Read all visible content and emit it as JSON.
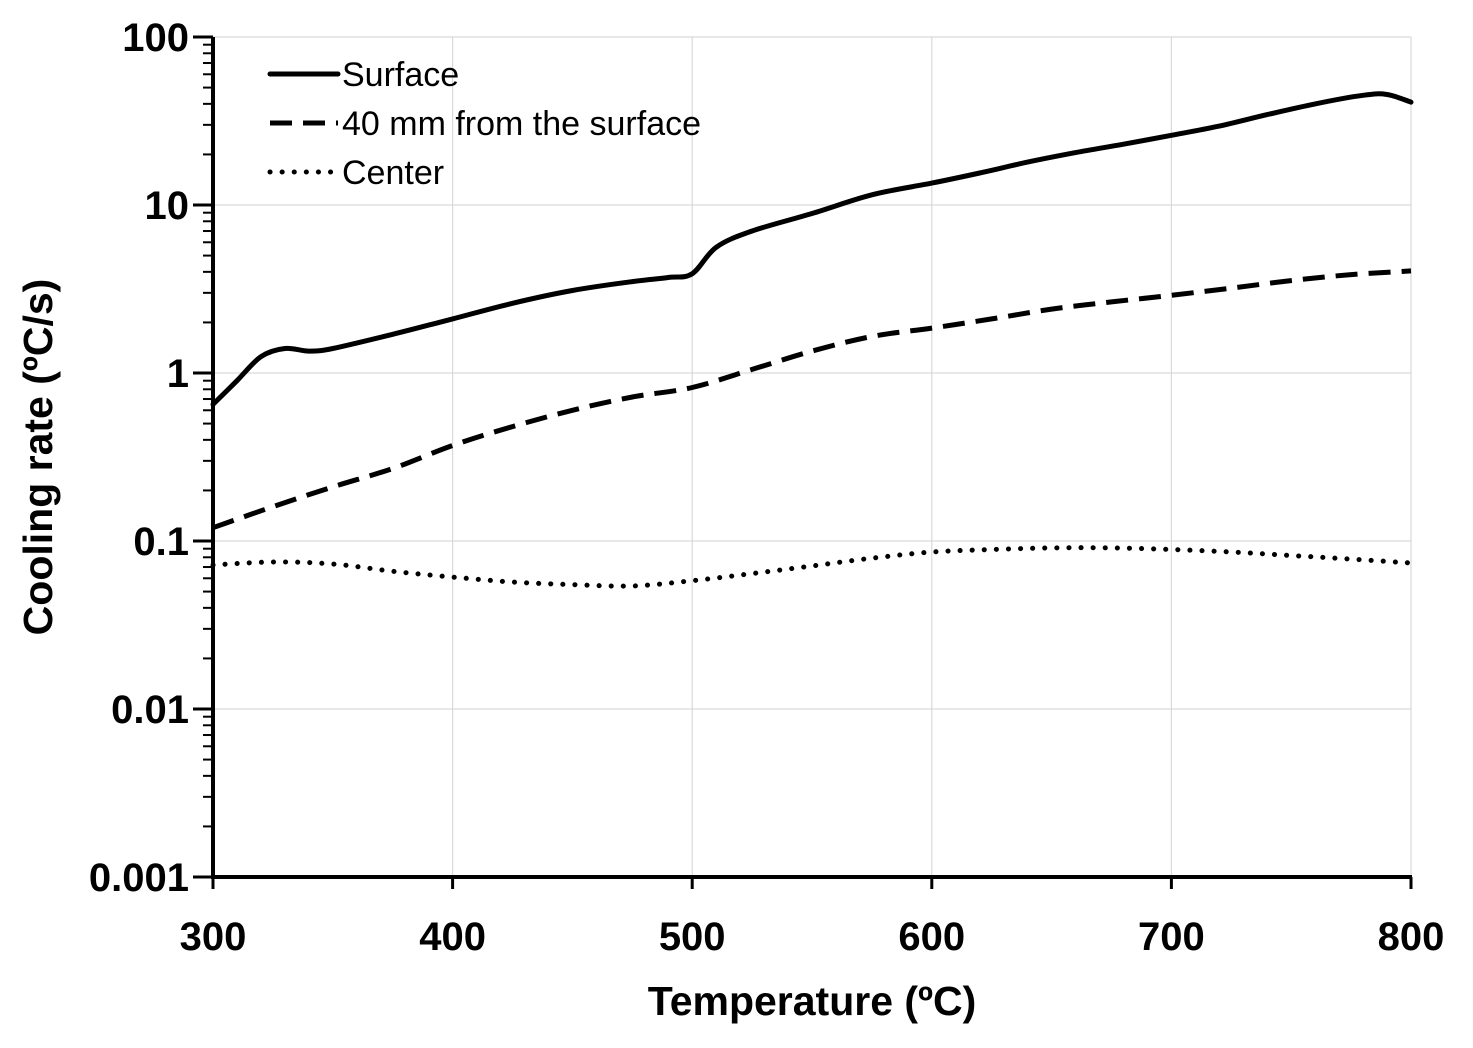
{
  "chart_data": {
    "type": "line",
    "title": "",
    "xlabel": "Temperature (ºC)",
    "ylabel": "Cooling rate (ºC/s)",
    "xlim": [
      300,
      800
    ],
    "ylim": [
      0.001,
      100
    ],
    "yscale": "log",
    "grid": true,
    "legend_position": "top-left",
    "x_ticks": [
      300,
      400,
      500,
      600,
      700,
      800
    ],
    "x_tick_labels": [
      "300",
      "400",
      "500",
      "600",
      "700",
      "800"
    ],
    "y_ticks": [
      0.001,
      0.01,
      0.1,
      1,
      10,
      100
    ],
    "y_tick_labels": [
      "0.001",
      "0.01",
      "0.1",
      "1",
      "10",
      "100"
    ],
    "series": [
      {
        "name": "Surface",
        "style": "solid",
        "x": [
          300,
          310,
          320,
          330,
          340,
          350,
          375,
          400,
          425,
          450,
          475,
          490,
          500,
          510,
          525,
          550,
          575,
          600,
          620,
          640,
          660,
          680,
          700,
          720,
          740,
          760,
          780,
          790,
          800
        ],
        "y": [
          0.65,
          0.9,
          1.25,
          1.4,
          1.35,
          1.4,
          1.7,
          2.1,
          2.6,
          3.1,
          3.5,
          3.7,
          3.9,
          5.6,
          7.0,
          8.9,
          11.5,
          13.5,
          15.5,
          18.0,
          20.5,
          23.0,
          26.0,
          29.5,
          34.5,
          40.0,
          45.0,
          45.5,
          41.0
        ]
      },
      {
        "name": "40 mm from the surface",
        "style": "dashed",
        "x": [
          300,
          325,
          350,
          375,
          400,
          425,
          450,
          475,
          500,
          525,
          550,
          575,
          600,
          625,
          650,
          675,
          700,
          725,
          750,
          775,
          800
        ],
        "y": [
          0.12,
          0.16,
          0.21,
          0.27,
          0.37,
          0.48,
          0.6,
          0.72,
          0.82,
          1.05,
          1.35,
          1.65,
          1.85,
          2.1,
          2.4,
          2.65,
          2.9,
          3.2,
          3.55,
          3.85,
          4.05
        ]
      },
      {
        "name": "Center",
        "style": "dotted",
        "x": [
          300,
          325,
          350,
          375,
          400,
          425,
          450,
          475,
          500,
          525,
          550,
          575,
          600,
          625,
          650,
          675,
          700,
          725,
          750,
          775,
          800
        ],
        "y": [
          0.072,
          0.075,
          0.073,
          0.066,
          0.061,
          0.057,
          0.055,
          0.054,
          0.058,
          0.064,
          0.071,
          0.079,
          0.086,
          0.089,
          0.091,
          0.091,
          0.089,
          0.086,
          0.082,
          0.078,
          0.074
        ]
      }
    ]
  }
}
